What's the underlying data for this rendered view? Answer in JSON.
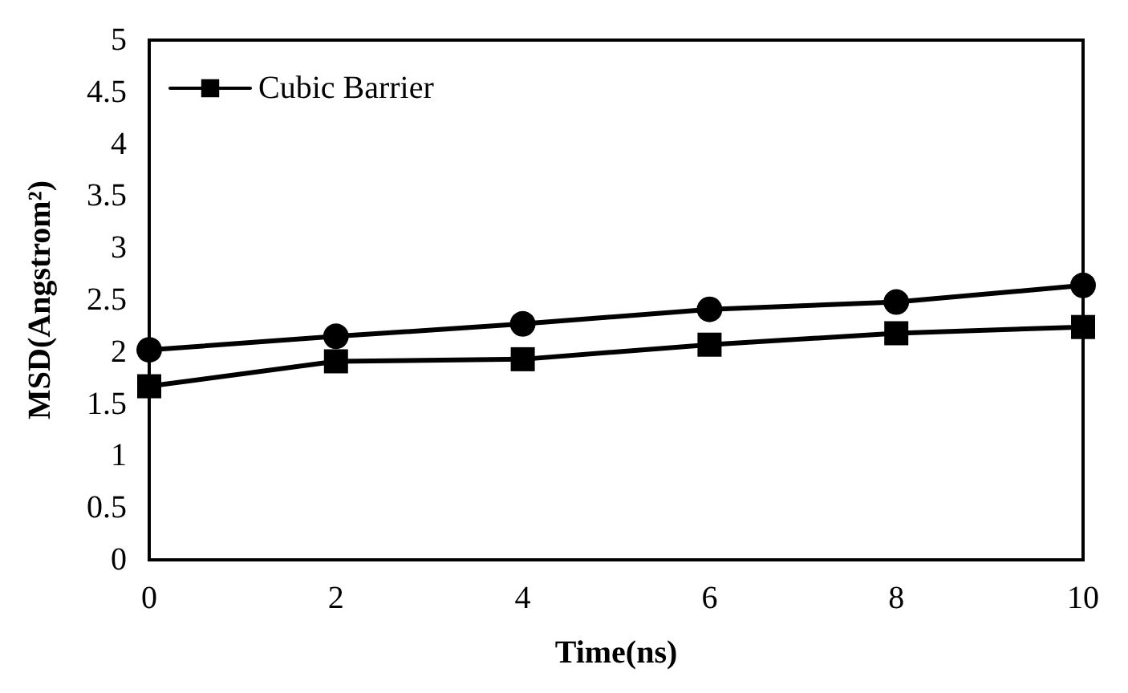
{
  "chart_data": {
    "type": "line",
    "xlabel": "Time(ns)",
    "ylabel": "MSD(Angstrom²)",
    "x": [
      0,
      2,
      4,
      6,
      8,
      10
    ],
    "series": [
      {
        "color": "#000000",
        "marker": "circle",
        "values": [
          2.02,
          2.15,
          2.27,
          2.41,
          2.48,
          2.64
        ]
      },
      {
        "name": "Cubic Barrier",
        "color": "#000000",
        "marker": "square",
        "values": [
          1.67,
          1.91,
          1.93,
          2.07,
          2.18,
          2.24
        ]
      }
    ],
    "xlim": [
      0,
      10
    ],
    "xticks": [
      0,
      2,
      4,
      6,
      8,
      10
    ],
    "ylim": [
      0,
      5
    ],
    "yticks": [
      0,
      0.5,
      1,
      1.5,
      2,
      2.5,
      3,
      3.5,
      4,
      4.5,
      5
    ],
    "grid": false,
    "legend": "top left",
    "line_style": "solid"
  }
}
